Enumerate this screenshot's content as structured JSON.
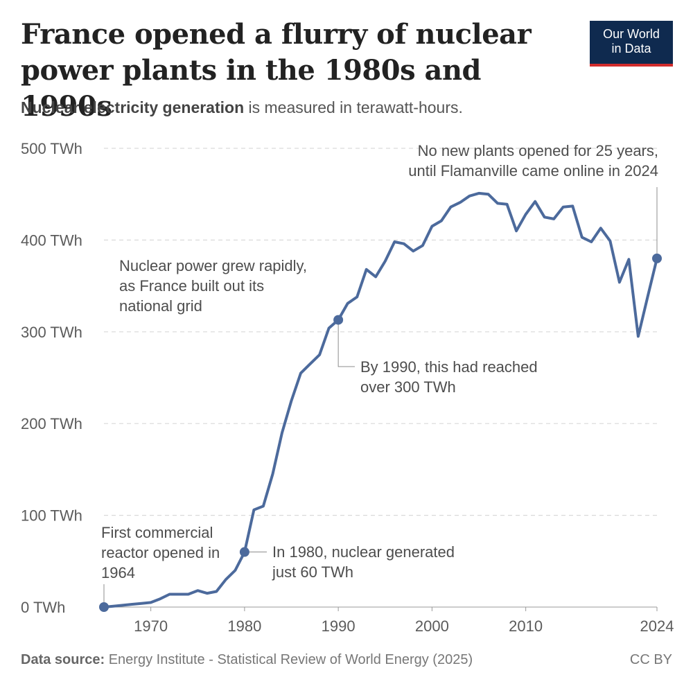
{
  "title": "France opened a flurry of nuclear power plants in the 1980s and 1990s",
  "subtitle": {
    "bold": "Nuclear electricity generation",
    "rest": " is measured in terawatt-hours."
  },
  "logo": {
    "line1": "Our World",
    "line2": "in Data"
  },
  "colors": {
    "line": "#4c6a9c",
    "grid": "#d9d9d9",
    "text": "#5b5b5b",
    "logo_bg": "#0f2a4f",
    "logo_accent": "#d12c2c"
  },
  "footer": {
    "source_label": "Data source:",
    "source_text": " Energy Institute - Statistical Review of World Energy (2025)",
    "license": "CC BY"
  },
  "chart_data": {
    "type": "line",
    "title": "France opened a flurry of nuclear power plants in the 1980s and 1990s",
    "ylabel": "",
    "xlabel": "",
    "ylim": [
      0,
      500
    ],
    "xlim": [
      1965,
      2024
    ],
    "y_ticks": [
      {
        "value": 0,
        "label": "0 TWh"
      },
      {
        "value": 100,
        "label": "100 TWh"
      },
      {
        "value": 200,
        "label": "200 TWh"
      },
      {
        "value": 300,
        "label": "300 TWh"
      },
      {
        "value": 400,
        "label": "400 TWh"
      },
      {
        "value": 500,
        "label": "500 TWh"
      }
    ],
    "x_ticks": [
      {
        "value": 1970,
        "label": "1970"
      },
      {
        "value": 1980,
        "label": "1980"
      },
      {
        "value": 1990,
        "label": "1990"
      },
      {
        "value": 2000,
        "label": "2000"
      },
      {
        "value": 2010,
        "label": "2010"
      },
      {
        "value": 2024,
        "label": "2024"
      }
    ],
    "grid": true,
    "series": [
      {
        "x": [
          1965,
          1966,
          1967,
          1968,
          1969,
          1970,
          1971,
          1972,
          1973,
          1974,
          1975,
          1976,
          1977,
          1978,
          1979,
          1980,
          1981,
          1982,
          1983,
          1984,
          1985,
          1986,
          1987,
          1988,
          1989,
          1990,
          1991,
          1992,
          1993,
          1994,
          1995,
          1996,
          1997,
          1998,
          1999,
          2000,
          2001,
          2002,
          2003,
          2004,
          2005,
          2006,
          2007,
          2008,
          2009,
          2010,
          2011,
          2012,
          2013,
          2014,
          2015,
          2016,
          2017,
          2018,
          2019,
          2020,
          2021,
          2022,
          2023,
          2024
        ],
        "values": [
          0,
          1,
          2,
          3,
          4,
          5,
          9,
          14,
          14,
          14,
          18,
          15,
          17,
          30,
          40,
          60,
          106,
          110,
          145,
          190,
          225,
          255,
          265,
          275,
          304,
          313,
          331,
          338,
          368,
          360,
          377,
          398,
          396,
          388,
          394,
          415,
          421,
          436,
          441,
          448,
          451,
          450,
          440,
          439,
          410,
          428,
          442,
          425,
          423,
          436,
          437,
          403,
          398,
          413,
          399,
          354,
          379,
          295,
          338,
          380
        ]
      }
    ],
    "markers": [
      {
        "x": 1965,
        "y": 0
      },
      {
        "x": 1980,
        "y": 60
      },
      {
        "x": 1990,
        "y": 313
      },
      {
        "x": 2024,
        "y": 380
      }
    ],
    "annotations": [
      {
        "lines": [
          "First commercial",
          "reactor opened in",
          "1964"
        ]
      },
      {
        "lines": [
          "In 1980, nuclear generated",
          "just 60 TWh"
        ]
      },
      {
        "lines": [
          "By 1990, this had reached",
          "over 300 TWh"
        ]
      },
      {
        "lines": [
          "Nuclear power grew rapidly,",
          "as France built out its",
          "national grid"
        ]
      },
      {
        "lines": [
          "No new plants opened for 25 years,",
          "until Flamanville came online in 2024"
        ]
      }
    ]
  }
}
